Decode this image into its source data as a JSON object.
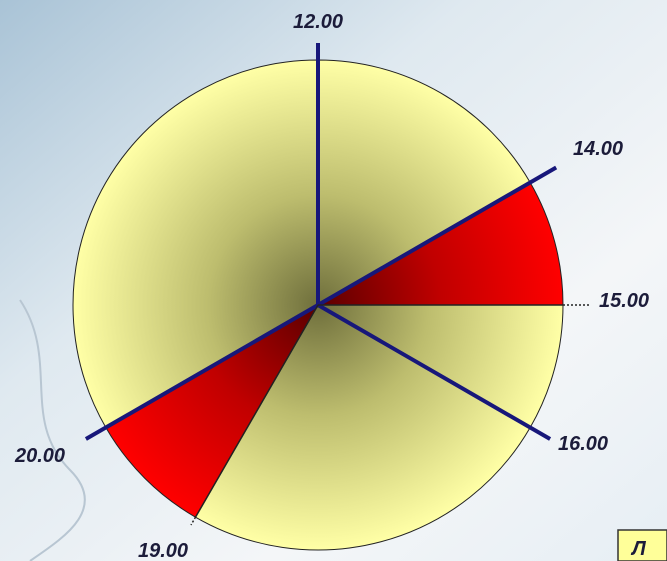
{
  "clock_labels": [
    "12.00",
    "14.00",
    "15.00",
    "16.00",
    "19.00",
    "20.00"
  ],
  "box_text": "Л"
}
